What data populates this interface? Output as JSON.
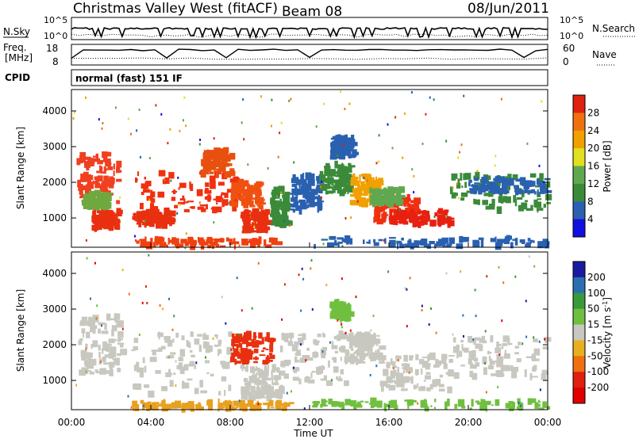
{
  "header": {
    "station": "Christmas Valley West (fitACF)",
    "beam": "Beam 08",
    "date": "08/Jun/2011"
  },
  "nsky_panel": {
    "left_label": "N.Sky",
    "left_ticks": [
      "10^5",
      "10^0"
    ],
    "right_label": "N.Search",
    "right_ticks": [
      "10^5",
      "10^0"
    ]
  },
  "freq_panel": {
    "left_label_line1": "Freq.",
    "left_label_line2": "[MHz]",
    "left_ticks": [
      "18",
      "8"
    ],
    "right_label": "Nave",
    "right_ticks": [
      "60",
      "0"
    ]
  },
  "cpid": {
    "label": "CPID",
    "mode": "normal (fast) 151 IF"
  },
  "chart_data": [
    {
      "type": "heatmap",
      "panel": "power",
      "ylabel": "Slant Range [km]",
      "xlabel": "Time UT",
      "ylim": [
        180,
        4600
      ],
      "xlim_hours": [
        0,
        24
      ],
      "x_tick_labels": [
        "00:00",
        "04:00",
        "08:00",
        "12:00",
        "16:00",
        "20:00",
        "00:00"
      ],
      "y_tick_labels": [
        "1000",
        "2000",
        "3000",
        "4000"
      ],
      "y_ticks": [
        1000,
        2000,
        3000,
        4000
      ],
      "colorbar": {
        "label": "Power [dB]",
        "tick_labels": [
          "4",
          "8",
          "12",
          "16",
          "20",
          "24",
          "28"
        ],
        "colors": [
          "#1010e0",
          "#2a60b0",
          "#3a8a3a",
          "#60a850",
          "#e0e020",
          "#f0a000",
          "#f07010",
          "#e02010"
        ]
      }
    },
    {
      "type": "heatmap",
      "panel": "velocity",
      "ylabel": "Slant Range [km]",
      "xlabel": "Time UT",
      "ylim": [
        180,
        4600
      ],
      "xlim_hours": [
        0,
        24
      ],
      "x_tick_labels": [
        "00:00",
        "04:00",
        "08:00",
        "12:00",
        "16:00",
        "20:00",
        "00:00"
      ],
      "y_tick_labels": [
        "1000",
        "2000",
        "3000",
        "4000"
      ],
      "y_ticks": [
        1000,
        2000,
        3000,
        4000
      ],
      "colorbar": {
        "label": "Velocity [m s",
        "label_sup": "-1",
        "label_end": "]",
        "tick_labels": [
          "200",
          "100",
          "50",
          "15",
          "-15",
          "-50",
          "-100",
          "-200"
        ],
        "colors": [
          "#1a1aa0",
          "#2a70b0",
          "#3a9a3a",
          "#70c040",
          "#c8c8c0",
          "#e8b020",
          "#f07010",
          "#e02010",
          "#e00000"
        ]
      }
    }
  ],
  "power_regions": [
    {
      "x": [
        0.2,
        2.3
      ],
      "y": [
        1400,
        2800
      ],
      "c": "#f04020"
    },
    {
      "x": [
        0.5,
        1.8
      ],
      "y": [
        1300,
        1700
      ],
      "c": "#70a840"
    },
    {
      "x": [
        1.0,
        2.3
      ],
      "y": [
        700,
        1200
      ],
      "c": "#e83010"
    },
    {
      "x": [
        3.0,
        8.5
      ],
      "y": [
        1200,
        2300
      ],
      "c": "#f03010"
    },
    {
      "x": [
        3.0,
        5.0
      ],
      "y": [
        800,
        1200
      ],
      "c": "#e83010"
    },
    {
      "x": [
        6.5,
        8.0
      ],
      "y": [
        2200,
        2900
      ],
      "c": "#e85010"
    },
    {
      "x": [
        8.5,
        9.8
      ],
      "y": [
        600,
        1200
      ],
      "c": "#e83010"
    },
    {
      "x": [
        8.0,
        9.5
      ],
      "y": [
        1300,
        2000
      ],
      "c": "#f05010"
    },
    {
      "x": [
        3.0,
        10.5
      ],
      "y": [
        200,
        400
      ],
      "c": "#f04010"
    },
    {
      "x": [
        10.0,
        10.8
      ],
      "y": [
        800,
        1800
      ],
      "c": "#3a8a3a"
    },
    {
      "x": [
        11.0,
        12.5
      ],
      "y": [
        1200,
        2200
      ],
      "c": "#2a60b0"
    },
    {
      "x": [
        12.5,
        14.0
      ],
      "y": [
        1700,
        2500
      ],
      "c": "#3a8a3a"
    },
    {
      "x": [
        13.0,
        14.2
      ],
      "y": [
        2700,
        3300
      ],
      "c": "#2a60b0"
    },
    {
      "x": [
        14.0,
        15.5
      ],
      "y": [
        1400,
        2200
      ],
      "c": "#f0a000"
    },
    {
      "x": [
        15.2,
        17.5
      ],
      "y": [
        900,
        1600
      ],
      "c": "#f03010"
    },
    {
      "x": [
        16.0,
        19.0
      ],
      "y": [
        800,
        1200
      ],
      "c": "#e82010"
    },
    {
      "x": [
        15.0,
        16.5
      ],
      "y": [
        1400,
        1800
      ],
      "c": "#60a850"
    },
    {
      "x": [
        19.0,
        24.0
      ],
      "y": [
        1200,
        2200
      ],
      "c": "#3a8a3a"
    },
    {
      "x": [
        20.0,
        24.0
      ],
      "y": [
        1700,
        2100
      ],
      "c": "#2a60b0"
    },
    {
      "x": [
        12.0,
        24.0
      ],
      "y": [
        200,
        450
      ],
      "c": "#2a60b0"
    }
  ],
  "velocity_regions": [
    {
      "x": [
        0.3,
        2.5
      ],
      "y": [
        1200,
        2800
      ],
      "c": "#c8c8c0"
    },
    {
      "x": [
        3.0,
        8.0
      ],
      "y": [
        600,
        2300
      ],
      "c": "#c8c8c0"
    },
    {
      "x": [
        8.0,
        10.0
      ],
      "y": [
        1500,
        2300
      ],
      "c": "#e83010"
    },
    {
      "x": [
        8.5,
        10.5
      ],
      "y": [
        500,
        1400
      ],
      "c": "#c8c8c0"
    },
    {
      "x": [
        3.0,
        11.0
      ],
      "y": [
        200,
        400
      ],
      "c": "#e8a020"
    },
    {
      "x": [
        10.5,
        14.0
      ],
      "y": [
        900,
        2400
      ],
      "c": "#c8c8c0"
    },
    {
      "x": [
        13.0,
        14.0
      ],
      "y": [
        2700,
        3200
      ],
      "c": "#70c040"
    },
    {
      "x": [
        14.0,
        15.5
      ],
      "y": [
        1500,
        2300
      ],
      "c": "#c8c8c0"
    },
    {
      "x": [
        15.5,
        19.0
      ],
      "y": [
        700,
        1700
      ],
      "c": "#c8c8c0"
    },
    {
      "x": [
        19.0,
        24.0
      ],
      "y": [
        1100,
        2200
      ],
      "c": "#c8c8c0"
    },
    {
      "x": [
        12.0,
        24.0
      ],
      "y": [
        200,
        450
      ],
      "c": "#70c040"
    }
  ]
}
